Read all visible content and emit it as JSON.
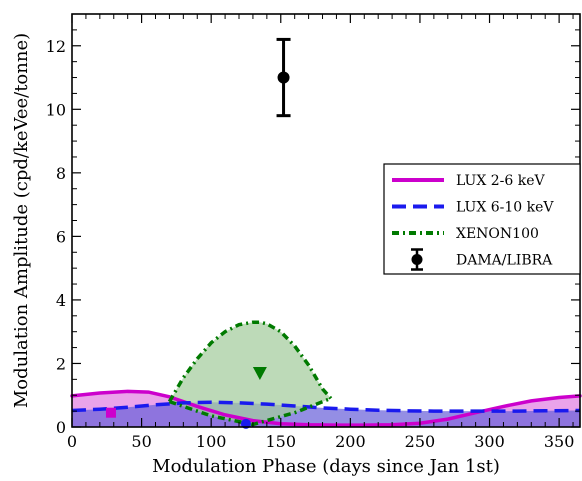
{
  "chart_data": {
    "type": "line",
    "title": "",
    "xlabel": "Modulation Phase (days since Jan 1st)",
    "ylabel": "Modulation Amplitude (cpd/keVee/tonne)",
    "xlim": [
      0,
      365
    ],
    "ylim": [
      0,
      13
    ],
    "x_ticks": [
      0,
      50,
      100,
      150,
      200,
      250,
      300,
      350
    ],
    "y_ticks": [
      0,
      2,
      4,
      6,
      8,
      10,
      12
    ],
    "grid": false,
    "legend_position": "right",
    "legend": [
      {
        "label": "LUX 2-6 keV",
        "style": "solid",
        "color": "#cc00cc"
      },
      {
        "label": "LUX 6-10 keV",
        "style": "dashed",
        "color": "#1a1aee"
      },
      {
        "label": "XENON100",
        "style": "dash-dot",
        "color": "#007a00"
      },
      {
        "label": "DAMA/LIBRA",
        "style": "errorbar",
        "color": "#000000"
      }
    ],
    "series": [
      {
        "name": "LUX 2-6 keV",
        "color": "#cc00cc",
        "fill": "#e27fe2",
        "x": [
          0,
          20,
          40,
          55,
          70,
          90,
          110,
          130,
          150,
          170,
          190,
          210,
          230,
          250,
          270,
          290,
          310,
          330,
          350,
          365
        ],
        "upper": [
          0.98,
          1.07,
          1.12,
          1.1,
          0.95,
          0.65,
          0.38,
          0.2,
          0.1,
          0.07,
          0.06,
          0.06,
          0.07,
          0.12,
          0.25,
          0.45,
          0.65,
          0.82,
          0.93,
          0.98
        ],
        "lower": [
          0,
          0,
          0,
          0,
          0,
          0,
          0,
          0,
          0,
          0,
          0,
          0,
          0,
          0,
          0,
          0,
          0,
          0,
          0,
          0
        ],
        "point": {
          "x": 28,
          "y": 0.45
        }
      },
      {
        "name": "LUX 6-10 keV",
        "color": "#1a1aee",
        "fill": "#6b62d9",
        "x": [
          0,
          20,
          40,
          60,
          80,
          100,
          120,
          140,
          160,
          180,
          200,
          220,
          240,
          260,
          280,
          300,
          320,
          340,
          365
        ],
        "upper": [
          0.52,
          0.56,
          0.62,
          0.7,
          0.76,
          0.78,
          0.76,
          0.72,
          0.66,
          0.6,
          0.56,
          0.53,
          0.51,
          0.5,
          0.5,
          0.5,
          0.5,
          0.51,
          0.52
        ],
        "lower": [
          0,
          0,
          0,
          0,
          0,
          0,
          0,
          0,
          0,
          0,
          0,
          0,
          0,
          0,
          0,
          0,
          0,
          0,
          0
        ],
        "point": {
          "x": 125,
          "y": 0.1
        }
      },
      {
        "name": "XENON100",
        "color": "#007a00",
        "fill": "#a3cc9c",
        "x": [
          70,
          80,
          90,
          100,
          110,
          120,
          130,
          135,
          140,
          150,
          160,
          170,
          180,
          186
        ],
        "upper": [
          0.8,
          1.55,
          2.15,
          2.65,
          3.0,
          3.22,
          3.3,
          3.3,
          3.25,
          3.0,
          2.55,
          1.95,
          1.2,
          0.9
        ],
        "x_lower": [
          70,
          100,
          130,
          160,
          186
        ],
        "lower": [
          0.8,
          0.35,
          0.08,
          0.45,
          0.9
        ],
        "point": {
          "x": 135,
          "y": 1.7
        }
      },
      {
        "name": "DAMA/LIBRA",
        "color": "#000000",
        "x": [
          152
        ],
        "y": [
          11.0
        ],
        "yerr": [
          1.2
        ]
      }
    ]
  }
}
